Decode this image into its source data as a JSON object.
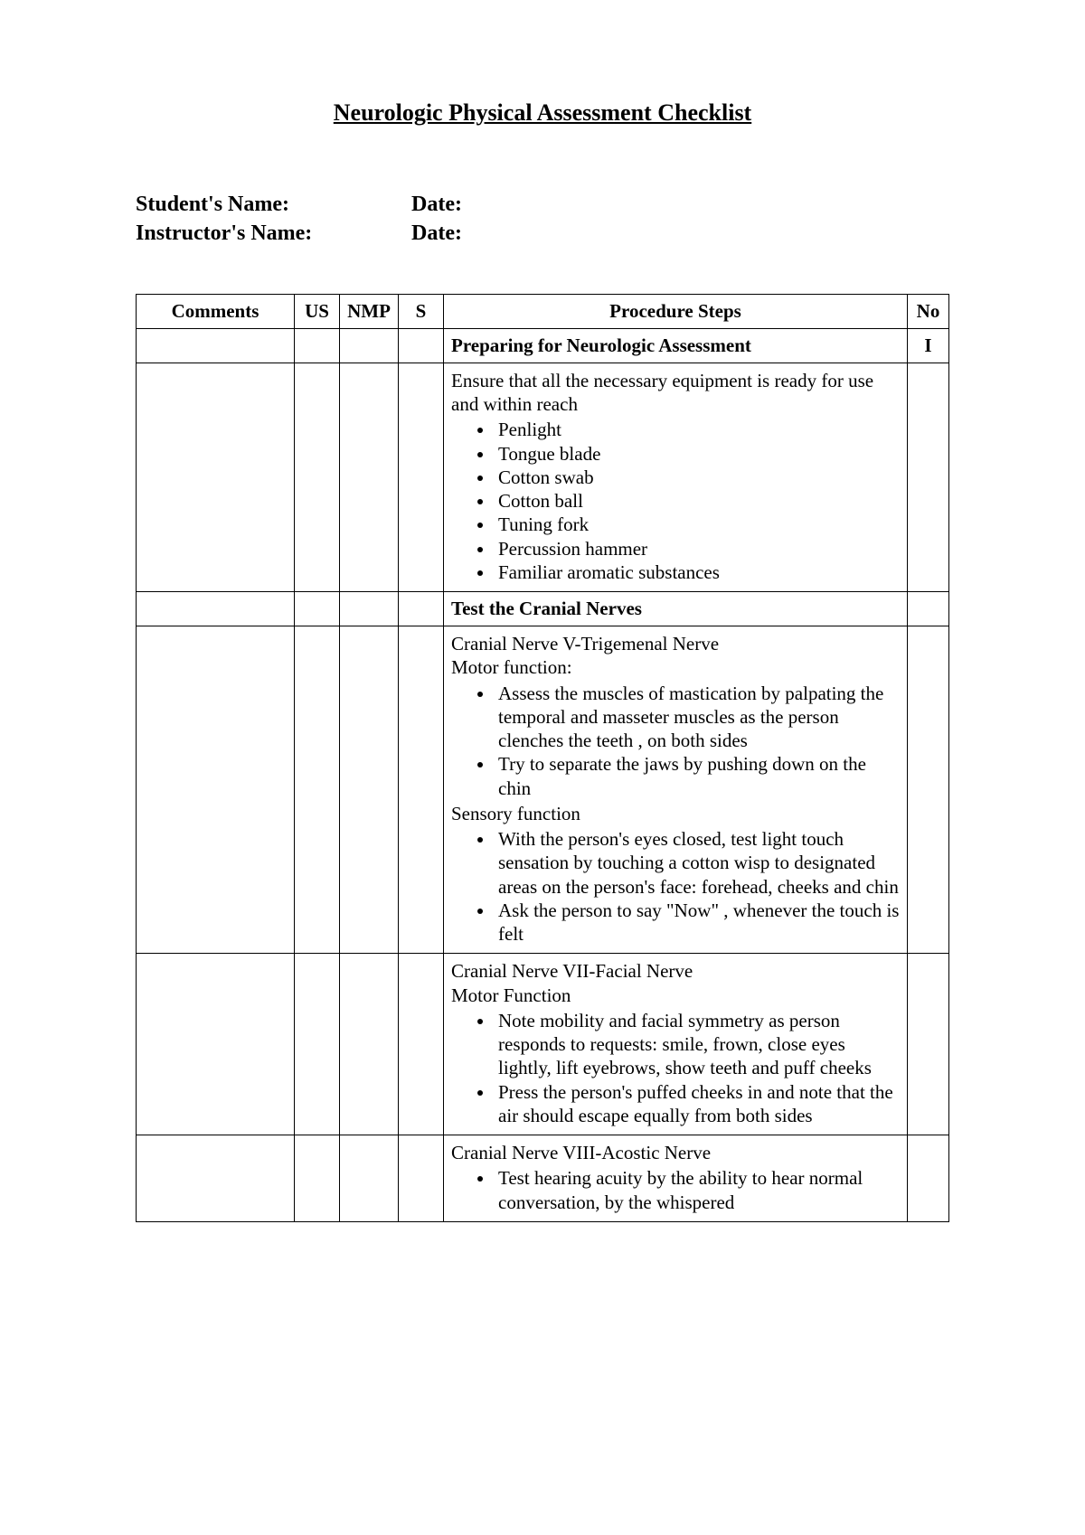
{
  "title": "Neurologic Physical Assessment Checklist",
  "meta": {
    "studentLabel": "Student's Name:",
    "instructorLabel": "Instructor's Name:",
    "dateLabel1": "Date:",
    "dateLabel2": "Date:"
  },
  "columns": {
    "comments": "Comments",
    "us": "US",
    "nmp": "NMP",
    "s": "S",
    "steps": "Procedure Steps",
    "no": "No"
  },
  "rows": {
    "section1": {
      "title": "Preparing for Neurologic Assessment",
      "no": "I"
    },
    "equip": {
      "intro": "Ensure that all the necessary equipment is ready for use and within reach",
      "items": [
        "Penlight",
        "Tongue blade",
        "Cotton swab",
        "Cotton ball",
        "Tuning fork",
        "Percussion hammer",
        "Familiar aromatic substances"
      ]
    },
    "section2": {
      "title": "Test the Cranial Nerves"
    },
    "cnv": {
      "head": "Cranial Nerve V-Trigemenal Nerve",
      "motorLabel": "Motor function:",
      "motorItems": [
        "Assess the muscles of mastication by palpating the temporal and masseter muscles as the person clenches the teeth , on both sides",
        "Try to separate the jaws by pushing down on the chin"
      ],
      "sensoryLabel": "Sensory function",
      "sensoryItems": [
        "With the person's eyes closed, test light touch sensation by touching a cotton wisp to  designated areas on the person's face: forehead, cheeks and chin",
        "Ask the person to say \"Now\" , whenever the touch is felt"
      ]
    },
    "cnvii": {
      "head": "Cranial Nerve VII-Facial Nerve",
      "motorLabel": "Motor Function",
      "items": [
        "Note mobility and facial symmetry as person responds to  requests: smile, frown, close eyes lightly, lift eyebrows, show teeth and puff cheeks",
        "Press the person's puffed cheeks in and note that the air should escape equally from both sides"
      ]
    },
    "cnviii": {
      "head": "Cranial Nerve VIII-Acostic Nerve",
      "items": [
        "Test hearing acuity by the ability to hear normal conversation, by the whispered"
      ]
    }
  }
}
